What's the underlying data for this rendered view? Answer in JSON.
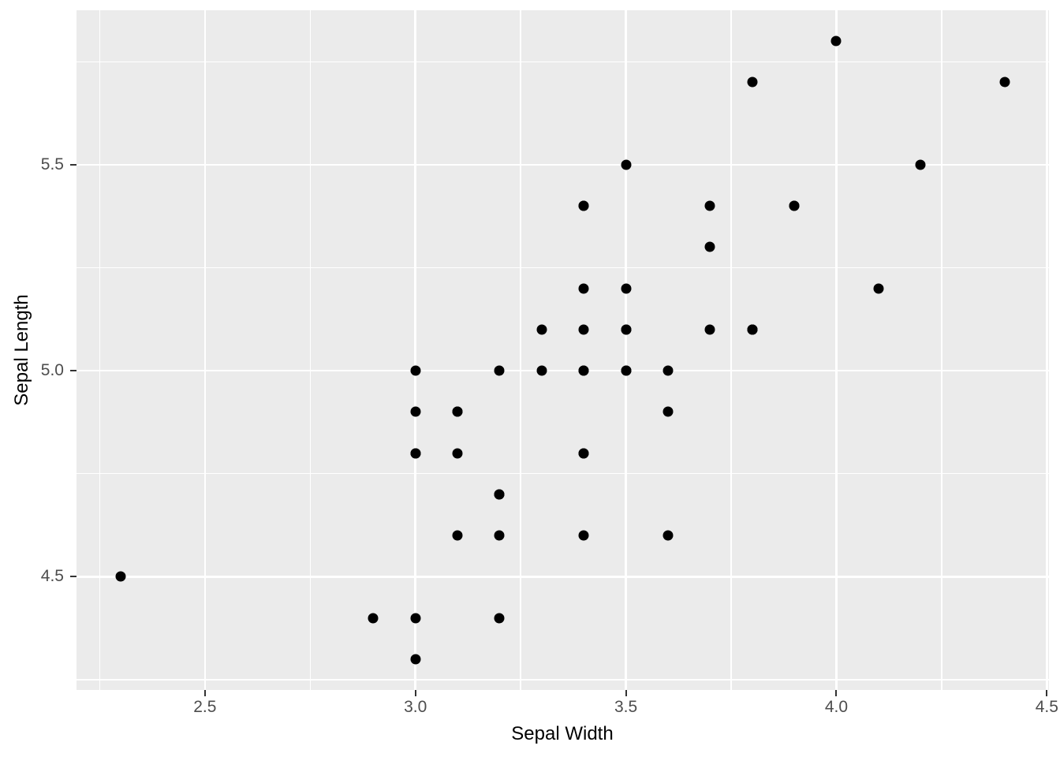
{
  "chart_data": {
    "type": "scatter",
    "title": "",
    "xlabel": "Sepal Width",
    "ylabel": "Sepal Length",
    "legend_position": "none",
    "grid": true,
    "xlim": [
      2.195,
      4.505
    ],
    "ylim": [
      4.225,
      5.875
    ],
    "x_ticks": [
      2.5,
      3.0,
      3.5,
      4.0,
      4.5
    ],
    "x_tick_labels": [
      "2.5",
      "3.0",
      "3.5",
      "4.0",
      "4.5"
    ],
    "x_minor_ticks": [
      2.25,
      2.75,
      3.25,
      3.75,
      4.25
    ],
    "y_ticks": [
      4.5,
      5.0,
      5.5
    ],
    "y_tick_labels": [
      "4.5",
      "5.0",
      "5.5"
    ],
    "y_minor_ticks": [
      4.25,
      4.75,
      5.25,
      5.75
    ],
    "points": [
      [
        3.5,
        5.1
      ],
      [
        3.0,
        4.9
      ],
      [
        3.2,
        4.7
      ],
      [
        3.1,
        4.6
      ],
      [
        3.6,
        5.0
      ],
      [
        3.9,
        5.4
      ],
      [
        3.4,
        4.6
      ],
      [
        3.4,
        5.0
      ],
      [
        2.9,
        4.4
      ],
      [
        3.1,
        4.9
      ],
      [
        3.7,
        5.4
      ],
      [
        3.4,
        4.8
      ],
      [
        3.0,
        4.8
      ],
      [
        3.0,
        4.3
      ],
      [
        4.0,
        5.8
      ],
      [
        4.4,
        5.7
      ],
      [
        3.9,
        5.4
      ],
      [
        3.5,
        5.1
      ],
      [
        3.8,
        5.7
      ],
      [
        3.8,
        5.1
      ],
      [
        3.4,
        5.4
      ],
      [
        3.7,
        5.1
      ],
      [
        3.6,
        4.6
      ],
      [
        3.3,
        5.1
      ],
      [
        3.4,
        4.8
      ],
      [
        3.0,
        5.0
      ],
      [
        3.4,
        5.0
      ],
      [
        3.5,
        5.2
      ],
      [
        3.4,
        5.2
      ],
      [
        3.2,
        4.7
      ],
      [
        3.1,
        4.8
      ],
      [
        3.4,
        5.4
      ],
      [
        4.1,
        5.2
      ],
      [
        4.2,
        5.5
      ],
      [
        3.1,
        4.9
      ],
      [
        3.2,
        5.0
      ],
      [
        3.5,
        5.5
      ],
      [
        3.6,
        4.9
      ],
      [
        3.0,
        4.4
      ],
      [
        3.4,
        5.1
      ],
      [
        3.5,
        5.0
      ],
      [
        2.3,
        4.5
      ],
      [
        3.2,
        4.4
      ],
      [
        3.5,
        5.0
      ],
      [
        3.8,
        5.1
      ],
      [
        3.0,
        4.8
      ],
      [
        3.8,
        5.1
      ],
      [
        3.2,
        4.6
      ],
      [
        3.7,
        5.3
      ],
      [
        3.3,
        5.0
      ]
    ],
    "colors": {
      "panel_background": "#EBEBEB",
      "gridline": "#FFFFFF",
      "point": "#000000",
      "tick_label": "#4D4D4D",
      "axis_title": "#000000",
      "tick_mark": "#333333",
      "figure_background": "#FFFFFF"
    }
  }
}
